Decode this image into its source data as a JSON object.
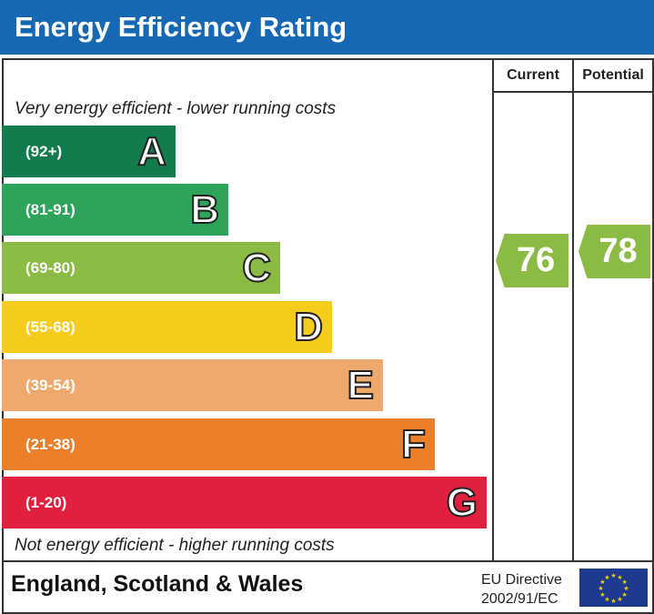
{
  "header": {
    "title": "Energy Efficiency Rating"
  },
  "columns": {
    "current": "Current",
    "potential": "Potential"
  },
  "notes": {
    "top": "Very energy efficient - lower running costs",
    "bottom": "Not energy efficient - higher running costs"
  },
  "footer": {
    "region": "England, Scotland & Wales",
    "directive_line1": "EU Directive",
    "directive_line2": "2002/91/EC",
    "flag_icon": "eu-flag-icon"
  },
  "chart_data": {
    "type": "bar",
    "categories": [
      "A",
      "B",
      "C",
      "D",
      "E",
      "F",
      "G"
    ],
    "ranges": [
      "(92+)",
      "(81-91)",
      "(69-80)",
      "(55-68)",
      "(39-54)",
      "(21-38)",
      "(1-20)"
    ],
    "colors": [
      "#137c4c",
      "#2ea45a",
      "#8cbb45",
      "#f5cb1c",
      "#f0a96c",
      "#ec7f2a",
      "#e0203d"
    ],
    "current": {
      "value": 76,
      "band": "C",
      "color": "#8cbb45"
    },
    "potential": {
      "value": 78,
      "band": "C",
      "color": "#8cbb45"
    }
  }
}
